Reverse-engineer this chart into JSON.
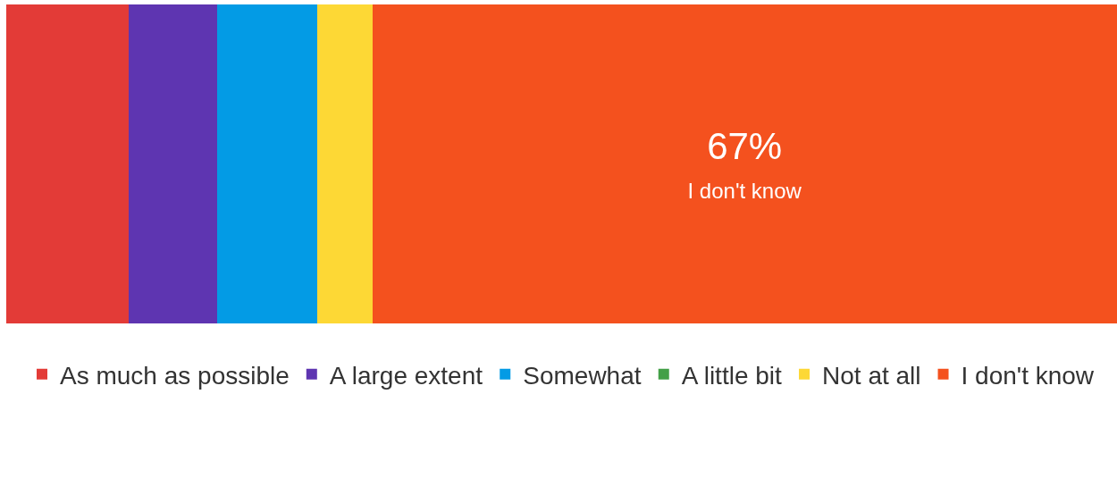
{
  "chart_data": {
    "type": "bar",
    "orientation": "horizontal",
    "stacked": true,
    "categories": [
      null
    ],
    "xlim": [
      0,
      100
    ],
    "legend": "bottom",
    "series": [
      {
        "name": "As much as possible",
        "color": "#e33b37",
        "values": [
          11
        ]
      },
      {
        "name": "A large extent",
        "color": "#5e35b1",
        "values": [
          8
        ]
      },
      {
        "name": "Somewhat",
        "color": "#039be5",
        "values": [
          9
        ]
      },
      {
        "name": "A little bit",
        "color": "#43a047",
        "values": [
          0
        ]
      },
      {
        "name": "Not at all",
        "color": "#fdd835",
        "values": [
          5
        ]
      },
      {
        "name": "I don't know",
        "color": "#f4511e",
        "values": [
          67
        ],
        "value_labels": [
          "67%"
        ]
      }
    ]
  }
}
